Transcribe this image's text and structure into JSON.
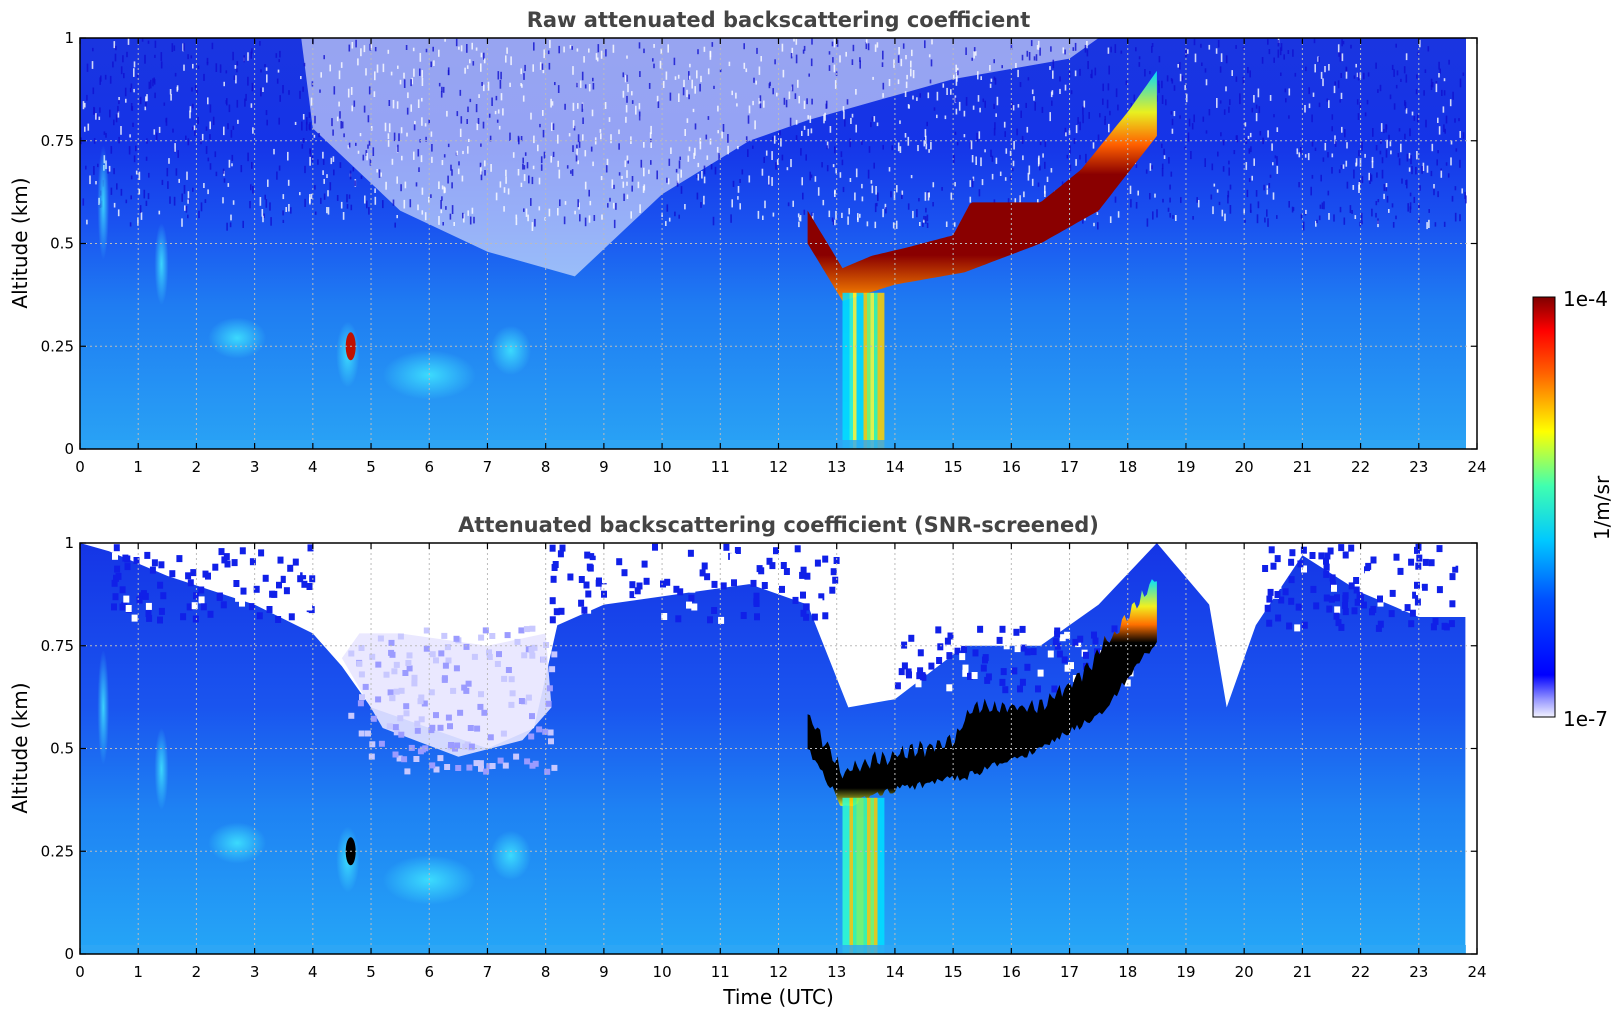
{
  "chart_data": [
    {
      "type": "heatmap",
      "title": "Raw attenuated backscattering coefficient",
      "xlabel": "",
      "ylabel": "Altitude (km)",
      "xlim": [
        0,
        24
      ],
      "ylim": [
        0,
        1
      ],
      "xticks": [
        "0",
        "1",
        "2",
        "3",
        "4",
        "5",
        "6",
        "7",
        "8",
        "9",
        "10",
        "11",
        "12",
        "13",
        "14",
        "15",
        "16",
        "17",
        "18",
        "19",
        "20",
        "21",
        "22",
        "23",
        "24"
      ],
      "yticks": [
        "0",
        "0.25",
        "0.5",
        "0.75",
        "1"
      ],
      "grid": true,
      "cloud_top_km": [
        {
          "t": 12.5,
          "km": 0.58
        },
        {
          "t": 13.1,
          "km": 0.44
        },
        {
          "t": 13.6,
          "km": 0.47
        },
        {
          "t": 14.2,
          "km": 0.49
        },
        {
          "t": 15.0,
          "km": 0.52
        },
        {
          "t": 15.3,
          "km": 0.6
        },
        {
          "t": 16.5,
          "km": 0.6
        },
        {
          "t": 17.2,
          "km": 0.68
        },
        {
          "t": 18.0,
          "km": 0.82
        },
        {
          "t": 18.5,
          "km": 0.92
        }
      ],
      "cloud_base_km": [
        {
          "t": 12.5,
          "km": 0.5
        },
        {
          "t": 13.1,
          "km": 0.36
        },
        {
          "t": 14.0,
          "km": 0.4
        },
        {
          "t": 15.2,
          "km": 0.43
        },
        {
          "t": 16.5,
          "km": 0.5
        },
        {
          "t": 17.5,
          "km": 0.58
        },
        {
          "t": 18.6,
          "km": 0.78
        }
      ]
    },
    {
      "type": "heatmap",
      "title": "Attenuated backscattering coefficient (SNR-screened)",
      "xlabel": "Time (UTC)",
      "ylabel": "Altitude (km)",
      "xlim": [
        0,
        24
      ],
      "ylim": [
        0,
        1
      ],
      "xticks": [
        "0",
        "1",
        "2",
        "3",
        "4",
        "5",
        "6",
        "7",
        "8",
        "9",
        "10",
        "11",
        "12",
        "13",
        "14",
        "15",
        "16",
        "17",
        "18",
        "19",
        "20",
        "21",
        "22",
        "23",
        "24"
      ],
      "yticks": [
        "0",
        "0.25",
        "0.5",
        "0.75",
        "1"
      ],
      "grid": true
    }
  ],
  "colorbar": {
    "label": "1/m/sr",
    "max_label": "1e-4",
    "min_label": "1e-7",
    "scale": "log",
    "range": [
      1e-07,
      0.0001
    ],
    "colormap": "jet"
  }
}
